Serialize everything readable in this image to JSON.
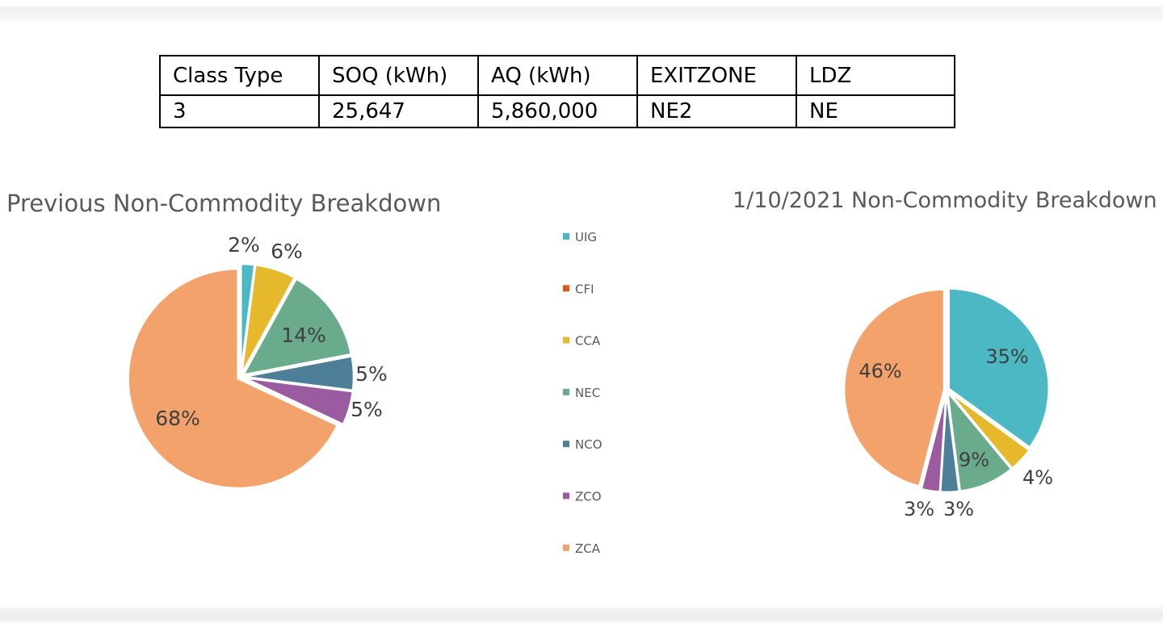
{
  "table": {
    "headers": [
      "Class Type",
      "SOQ (kWh)",
      "AQ (kWh)",
      "EXITZONE",
      "LDZ"
    ],
    "row": [
      "3",
      "25,647",
      "5,860,000",
      "NE2",
      "NE"
    ]
  },
  "legend": {
    "items": [
      {
        "name": "UIG",
        "color": "#4bb8c4"
      },
      {
        "name": "CFI",
        "color": "#e3571c"
      },
      {
        "name": "CCA",
        "color": "#e6b92d"
      },
      {
        "name": "NEC",
        "color": "#6aab8e"
      },
      {
        "name": "NCO",
        "color": "#4e7f98"
      },
      {
        "name": "ZCO",
        "color": "#9b5ba0"
      },
      {
        "name": "ZCA",
        "color": "#f4a26c"
      }
    ]
  },
  "chart_data": [
    {
      "type": "pie",
      "title": "Previous Non-Commodity Breakdown",
      "slices": [
        {
          "name": "UIG",
          "value": 2,
          "label": "2%"
        },
        {
          "name": "CCA",
          "value": 6,
          "label": "6%"
        },
        {
          "name": "NEC",
          "value": 14,
          "label": "14%"
        },
        {
          "name": "NCO",
          "value": 5,
          "label": "5%"
        },
        {
          "name": "ZCO",
          "value": 5,
          "label": "5%"
        },
        {
          "name": "ZCA",
          "value": 68,
          "label": "68%"
        }
      ]
    },
    {
      "type": "pie",
      "title": "1/10/2021 Non-Commodity Breakdown",
      "slices": [
        {
          "name": "UIG",
          "value": 35,
          "label": "35%"
        },
        {
          "name": "CCA",
          "value": 4,
          "label": "4%"
        },
        {
          "name": "NEC",
          "value": 9,
          "label": "9%"
        },
        {
          "name": "NCO",
          "value": 3,
          "label": "3%"
        },
        {
          "name": "ZCO",
          "value": 3,
          "label": "3%"
        },
        {
          "name": "ZCA",
          "value": 46,
          "label": "46%"
        }
      ]
    }
  ]
}
